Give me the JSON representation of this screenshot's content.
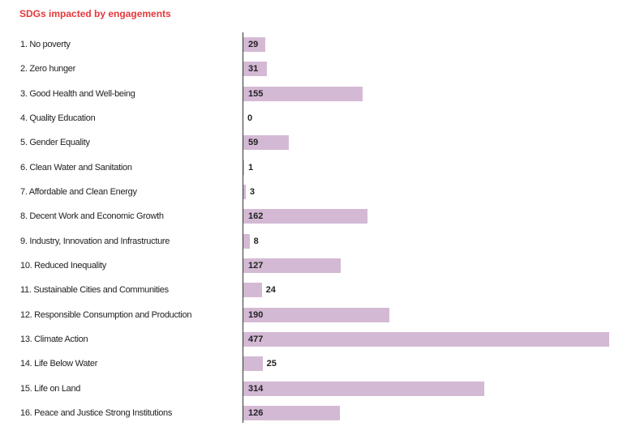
{
  "chart_data": {
    "type": "bar",
    "orientation": "horizontal",
    "title": "SDGs impacted by engagements",
    "xlabel": "",
    "ylabel": "",
    "xlim": [
      0,
      477
    ],
    "categories": [
      "1. No poverty",
      "2. Zero hunger",
      "3. Good Health and Well-being",
      "4. Quality Education",
      "5. Gender Equality",
      "6. Clean Water and Sanitation",
      "7. Affordable and Clean Energy",
      "8. Decent Work and Economic Growth",
      "9. Industry, Innovation and Infrastructure",
      "10. Reduced Inequality",
      "11. Sustainable Cities and Communities",
      "12. Responsible Consumption and Production",
      "13. Climate Action",
      "14. Life Below Water",
      "15. Life on Land",
      "16. Peace and Justice Strong Institutions"
    ],
    "values": [
      29,
      31,
      155,
      0,
      59,
      1,
      3,
      162,
      8,
      127,
      24,
      190,
      477,
      25,
      314,
      126
    ],
    "bar_color": "#d4b9d4",
    "title_color": "#e5383b"
  }
}
